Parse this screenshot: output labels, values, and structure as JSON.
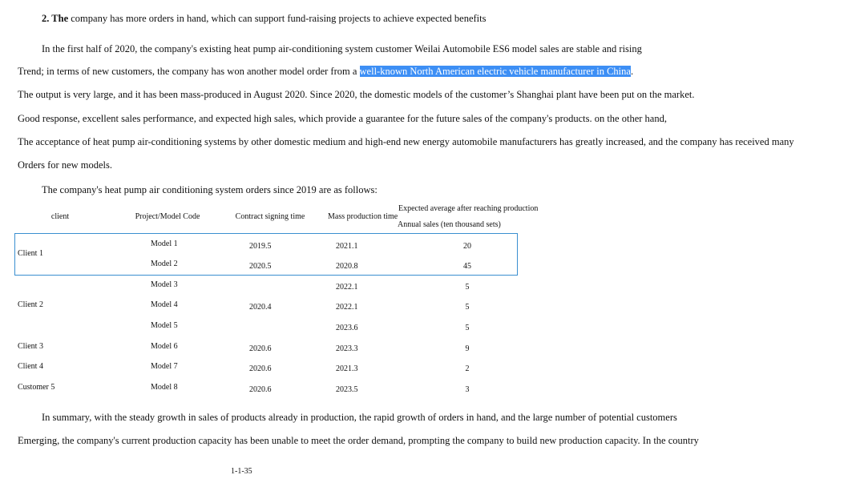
{
  "heading": {
    "bold": "2. The",
    "rest": " company has more orders in hand, which can support fund-raising projects to achieve expected benefits"
  },
  "paragraph1": [
    "In the first half of 2020, the company's existing heat pump air-conditioning system customer Weilai Automobile ES6 model sales are stable and rising",
    "Trend; in terms of new customers, the company has won another model order from a ",
    "The output is very large, and it has been mass-produced in August 2020. Since 2020, the domestic models of the customer’s Shanghai plant have been put on the market.",
    "Good response, excellent sales performance, and expected high sales, which provide a guarantee for the future sales of the company's products. on the other hand,",
    "The acceptance of heat pump air-conditioning systems by other domestic medium and high-end new energy automobile manufacturers has greatly increased, and the company has received many",
    "Orders for new models."
  ],
  "highlighted_text": "well-known North American electric vehicle manufacturer in China",
  "after_highlight": ".",
  "table_intro": "The company's heat pump air conditioning system orders since 2019 are as follows:",
  "table": {
    "headers": [
      "client",
      "Project/Model Code",
      "Contract signing time",
      "Mass production time",
      "Expected average after reaching production",
      "Annual sales (ten thousand sets)"
    ],
    "rows": [
      {
        "client": "",
        "model": "Model 1",
        "contract": "2019.5",
        "mass": "2021.1",
        "sales": "20"
      },
      {
        "client": "Client 1",
        "model": "Model 2",
        "contract": "2020.5",
        "mass": "2020.8",
        "sales": "45"
      },
      {
        "client": "",
        "model": "Model 3",
        "contract": "",
        "mass": "2022.1",
        "sales": "5"
      },
      {
        "client": "Client 2",
        "model": "Model 4",
        "contract": "2020.4",
        "mass": "2022.1",
        "sales": "5"
      },
      {
        "client": "",
        "model": "Model 5",
        "contract": "",
        "mass": "2023.6",
        "sales": "5"
      },
      {
        "client": "Client 3",
        "model": "Model 6",
        "contract": "2020.6",
        "mass": "2023.3",
        "sales": "9"
      },
      {
        "client": "Client 4",
        "model": "Model 7",
        "contract": "2020.6",
        "mass": "2021.3",
        "sales": "2"
      },
      {
        "client": "Customer 5",
        "model": "Model 8",
        "contract": "2020.6",
        "mass": "2023.5",
        "sales": "3"
      }
    ]
  },
  "summary": [
    "In summary, with the steady growth in sales of products already in production, the rapid growth of orders in hand, and the large number of potential customers",
    "Emerging, the company's current production capacity has been unable to meet the order demand, prompting the company to build new production capacity. In the country"
  ],
  "page_number": "1-1-35",
  "colors": {
    "highlight": "#3d8ff5",
    "selection_box": "#3a8fd0"
  }
}
